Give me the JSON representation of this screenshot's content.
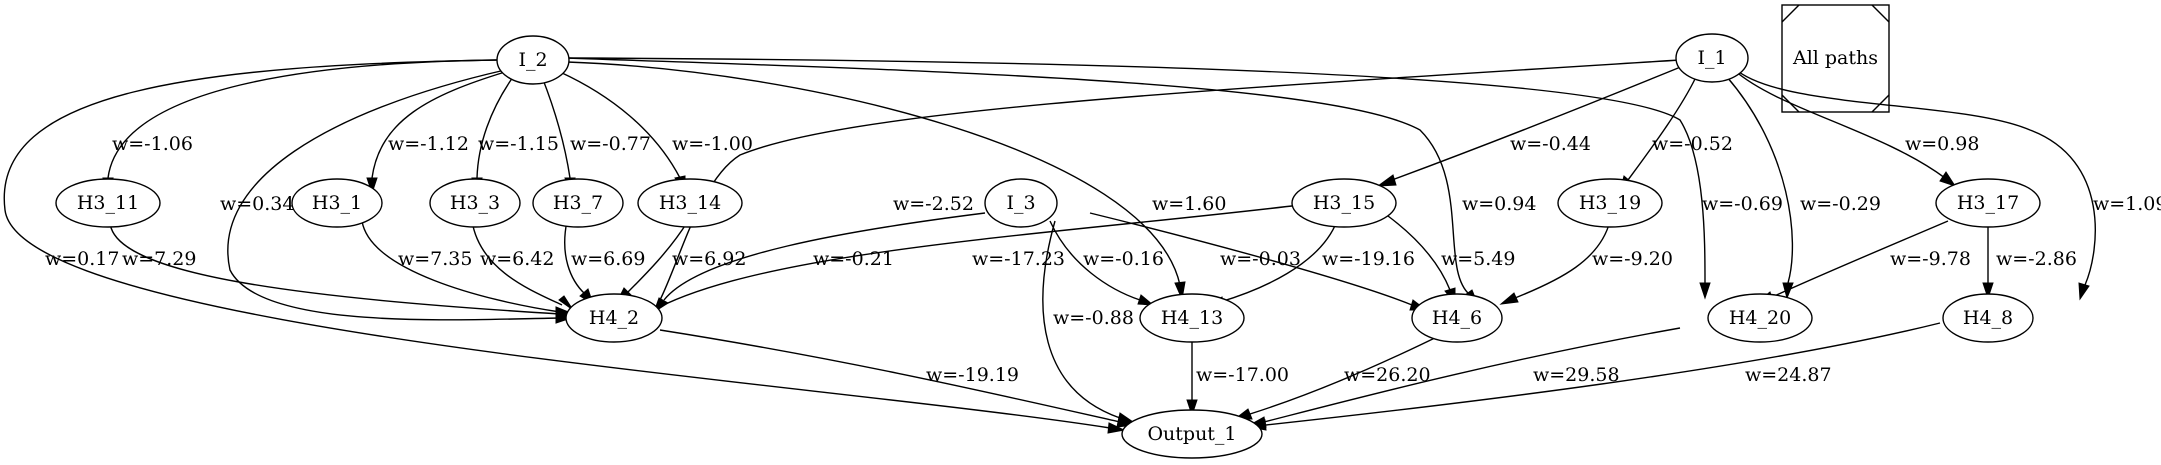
{
  "legend": {
    "label": "All paths"
  },
  "nodes": {
    "I_2": "I_2",
    "I_1": "I_1",
    "I_3": "I_3",
    "H3_11": "H3_11",
    "H3_1": "H3_1",
    "H3_3": "H3_3",
    "H3_7": "H3_7",
    "H3_14": "H3_14",
    "H3_15": "H3_15",
    "H3_19": "H3_19",
    "H3_17": "H3_17",
    "H4_2": "H4_2",
    "H4_13": "H4_13",
    "H4_6": "H4_6",
    "H4_20": "H4_20",
    "H4_8": "H4_8",
    "Output_1": "Output_1"
  },
  "edges": [
    {
      "from": "I_2",
      "to": "H3_11",
      "label": "w=-1.06"
    },
    {
      "from": "I_2",
      "to": "H3_1",
      "label": "w=-1.12"
    },
    {
      "from": "I_2",
      "to": "H3_3",
      "label": "w=-1.15"
    },
    {
      "from": "I_2",
      "to": "H3_7",
      "label": "w=-0.77"
    },
    {
      "from": "I_2",
      "to": "H3_14",
      "label": "w=-1.00"
    },
    {
      "from": "I_2",
      "to": "H4_2",
      "label": "w=0.34"
    },
    {
      "from": "I_2",
      "to": "Output_1",
      "label": "w=0.17"
    },
    {
      "from": "I_2",
      "to": "H4_13",
      "label": "w=1.60"
    },
    {
      "from": "I_2",
      "to": "H4_6",
      "label": "w=0.94"
    },
    {
      "from": "I_2",
      "to": "H4_20",
      "label": "w=-0.69"
    },
    {
      "from": "I_1",
      "to": "H4_2",
      "label": "w=-2.52"
    },
    {
      "from": "I_1",
      "to": "H3_15",
      "label": "w=-0.44"
    },
    {
      "from": "I_1",
      "to": "H3_19",
      "label": "w=-0.52"
    },
    {
      "from": "I_1",
      "to": "H4_20",
      "label": "w=-0.29"
    },
    {
      "from": "I_1",
      "to": "H3_17",
      "label": "w=0.98"
    },
    {
      "from": "I_1",
      "to": "H4_8",
      "label": "w=1.09"
    },
    {
      "from": "H3_11",
      "to": "H4_2",
      "label": "w=7.29"
    },
    {
      "from": "H3_1",
      "to": "H4_2",
      "label": "w=7.35"
    },
    {
      "from": "H3_3",
      "to": "H4_2",
      "label": "w=6.42"
    },
    {
      "from": "H3_7",
      "to": "H4_2",
      "label": "w=6.69"
    },
    {
      "from": "H3_14",
      "to": "H4_2",
      "label": "w=6.92"
    },
    {
      "from": "I_3",
      "to": "H4_2",
      "label": "w=-0.21"
    },
    {
      "from": "I_3",
      "to": "H4_13",
      "label": "w=-0.16"
    },
    {
      "from": "I_3",
      "to": "H4_6",
      "label": "w=-0.03"
    },
    {
      "from": "I_3",
      "to": "Output_1",
      "label": "w=-0.88"
    },
    {
      "from": "H3_15",
      "to": "H4_2",
      "label": "w=-17.23"
    },
    {
      "from": "H3_15",
      "to": "H4_13",
      "label": "w=-19.16"
    },
    {
      "from": "H3_15",
      "to": "H4_6",
      "label": "w=5.49"
    },
    {
      "from": "H3_19",
      "to": "H4_6",
      "label": "w=-9.20"
    },
    {
      "from": "H3_17",
      "to": "H4_20",
      "label": "w=-9.78"
    },
    {
      "from": "H3_17",
      "to": "H4_8",
      "label": "w=-2.86"
    },
    {
      "from": "H4_2",
      "to": "Output_1",
      "label": "w=-19.19"
    },
    {
      "from": "H4_13",
      "to": "Output_1",
      "label": "w=-17.00"
    },
    {
      "from": "H4_6",
      "to": "Output_1",
      "label": "w=26.20"
    },
    {
      "from": "H4_20",
      "to": "Output_1",
      "label": "w=29.58"
    },
    {
      "from": "H4_8",
      "to": "Output_1",
      "label": "w=24.87"
    }
  ]
}
